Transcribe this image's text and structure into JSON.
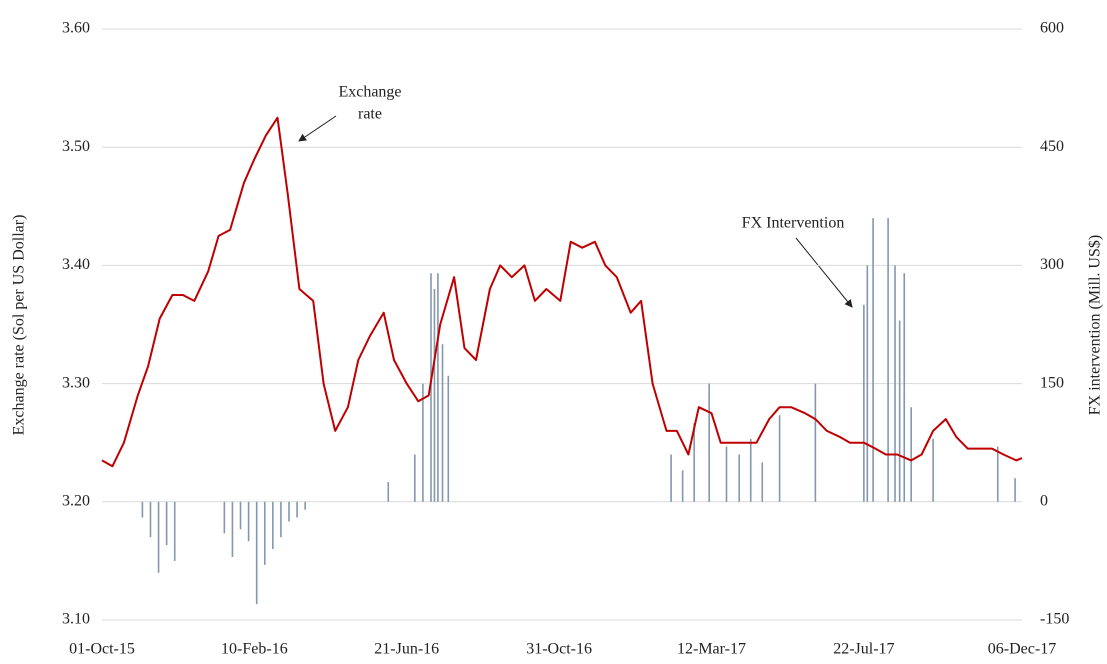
{
  "chart_data": {
    "type": "line-bar",
    "y_axis_label": "Exchange rate (Sol per US Dollar)",
    "y2_axis_label": "FX intervention (Mill. US$)",
    "annotations": [
      {
        "lines": [
          "Exchange",
          "rate"
        ]
      },
      {
        "lines": [
          "FX Intervention"
        ]
      }
    ],
    "xlim": [
      "01-Oct-15",
      "06-Dec-17"
    ],
    "xticks": [
      "01-Oct-15",
      "10-Feb-16",
      "21-Jun-16",
      "31-Oct-16",
      "12-Mar-17",
      "22-Jul-17",
      "06-Dec-17"
    ],
    "ylim": [
      3.1,
      3.6
    ],
    "yticks": [
      {
        "value": 3.1,
        "label": "3.10"
      },
      {
        "value": 3.2,
        "label": "3.20"
      },
      {
        "value": 3.3,
        "label": "3.30"
      },
      {
        "value": 3.4,
        "label": "3.40"
      },
      {
        "value": 3.5,
        "label": "3.50"
      },
      {
        "value": 3.6,
        "label": "3.60"
      }
    ],
    "y2lim": [
      -150,
      600
    ],
    "y2ticks": [
      -150,
      0,
      150,
      300,
      450,
      600
    ],
    "grid": true,
    "series": [
      {
        "name": "Exchange rate",
        "type": "line",
        "color": "#c00000",
        "x": [
          "01-Oct-15",
          "10-Oct-15",
          "20-Oct-15",
          "01-Nov-15",
          "10-Nov-15",
          "20-Nov-15",
          "01-Dec-15",
          "10-Dec-15",
          "20-Dec-15",
          "01-Jan-16",
          "10-Jan-16",
          "20-Jan-16",
          "01-Feb-16",
          "10-Feb-16",
          "20-Feb-16",
          "01-Mar-16",
          "10-Mar-16",
          "20-Mar-16",
          "01-Apr-16",
          "10-Apr-16",
          "20-Apr-16",
          "01-May-16",
          "10-May-16",
          "20-May-16",
          "01-Jun-16",
          "10-Jun-16",
          "21-Jun-16",
          "01-Jul-16",
          "10-Jul-16",
          "20-Jul-16",
          "01-Aug-16",
          "10-Aug-16",
          "20-Aug-16",
          "01-Sep-16",
          "10-Sep-16",
          "20-Sep-16",
          "01-Oct-16",
          "10-Oct-16",
          "20-Oct-16",
          "01-Nov-16",
          "10-Nov-16",
          "20-Nov-16",
          "01-Dec-16",
          "10-Dec-16",
          "20-Dec-16",
          "01-Jan-17",
          "10-Jan-17",
          "20-Jan-17",
          "01-Feb-17",
          "10-Feb-17",
          "20-Feb-17",
          "01-Mar-17",
          "12-Mar-17",
          "20-Mar-17",
          "01-Apr-17",
          "10-Apr-17",
          "20-Apr-17",
          "01-May-17",
          "10-May-17",
          "20-May-17",
          "01-Jun-17",
          "10-Jun-17",
          "20-Jun-17",
          "01-Jul-17",
          "10-Jul-17",
          "22-Jul-17",
          "01-Aug-17",
          "10-Aug-17",
          "20-Aug-17",
          "01-Sep-17",
          "10-Sep-17",
          "20-Sep-17",
          "01-Oct-17",
          "10-Oct-17",
          "20-Oct-17",
          "01-Nov-17",
          "10-Nov-17",
          "20-Nov-17",
          "01-Dec-17",
          "06-Dec-17"
        ],
        "values": [
          3.235,
          3.23,
          3.25,
          3.29,
          3.315,
          3.355,
          3.375,
          3.375,
          3.37,
          3.395,
          3.425,
          3.43,
          3.47,
          3.49,
          3.51,
          3.525,
          3.46,
          3.38,
          3.37,
          3.3,
          3.26,
          3.28,
          3.32,
          3.34,
          3.36,
          3.32,
          3.3,
          3.285,
          3.29,
          3.35,
          3.39,
          3.33,
          3.32,
          3.38,
          3.4,
          3.39,
          3.4,
          3.37,
          3.38,
          3.37,
          3.42,
          3.415,
          3.42,
          3.4,
          3.39,
          3.36,
          3.37,
          3.3,
          3.26,
          3.26,
          3.24,
          3.28,
          3.275,
          3.25,
          3.25,
          3.25,
          3.25,
          3.27,
          3.28,
          3.28,
          3.275,
          3.27,
          3.26,
          3.255,
          3.25,
          3.25,
          3.245,
          3.24,
          3.24,
          3.235,
          3.24,
          3.26,
          3.27,
          3.255,
          3.245,
          3.245,
          3.245,
          3.24,
          3.235,
          3.237
        ]
      },
      {
        "name": "FX intervention",
        "type": "bar",
        "axis": "y2",
        "color": "#8497b0",
        "x": [
          "05-Nov-15",
          "12-Nov-15",
          "19-Nov-15",
          "26-Nov-15",
          "03-Dec-15",
          "15-Jan-16",
          "22-Jan-16",
          "29-Jan-16",
          "05-Feb-16",
          "12-Feb-16",
          "19-Feb-16",
          "26-Feb-16",
          "04-Mar-16",
          "11-Mar-16",
          "18-Mar-16",
          "25-Mar-16",
          "05-Jun-16",
          "28-Jun-16",
          "05-Jul-16",
          "12-Jul-16",
          "15-Jul-16",
          "18-Jul-16",
          "22-Jul-16",
          "27-Jul-16",
          "05-Feb-17",
          "15-Feb-17",
          "25-Feb-17",
          "10-Mar-17",
          "25-Mar-17",
          "05-Apr-17",
          "15-Apr-17",
          "25-Apr-17",
          "10-May-17",
          "10-Jun-17",
          "22-Jul-17",
          "25-Jul-17",
          "30-Jul-17",
          "12-Aug-17",
          "18-Aug-17",
          "22-Aug-17",
          "26-Aug-17",
          "01-Sep-17",
          "20-Sep-17",
          "15-Nov-17",
          "30-Nov-17"
        ],
        "values": [
          -20,
          -45,
          -90,
          -55,
          -75,
          -40,
          -70,
          -35,
          -50,
          -130,
          -80,
          -60,
          -45,
          -25,
          -20,
          -10,
          25,
          60,
          150,
          290,
          270,
          290,
          200,
          160,
          60,
          40,
          100,
          150,
          70,
          60,
          80,
          50,
          110,
          150,
          250,
          300,
          360,
          360,
          300,
          230,
          290,
          120,
          80,
          70,
          30
        ]
      }
    ]
  }
}
